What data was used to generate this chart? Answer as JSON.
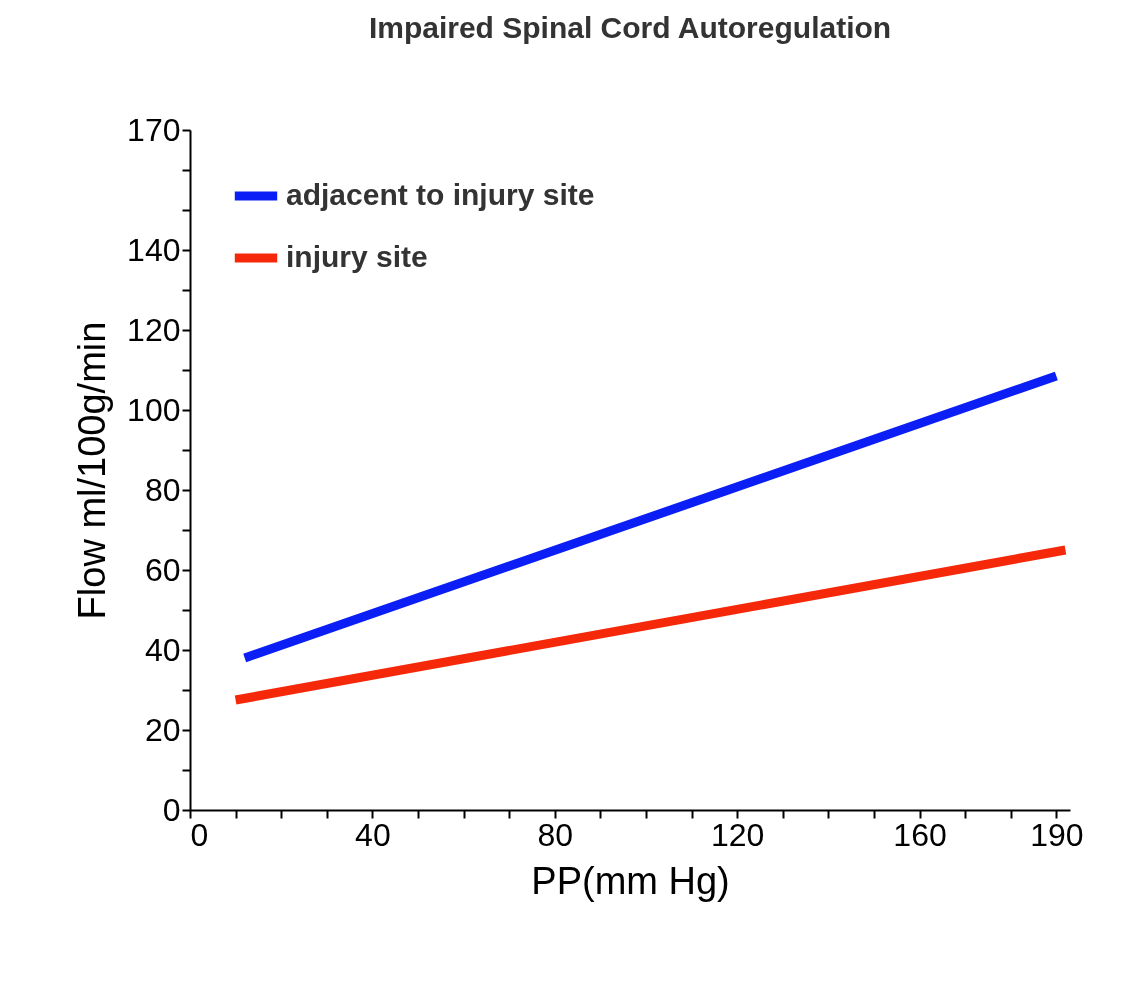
{
  "chart_data": {
    "type": "line",
    "title": "Impaired Spinal Cord Autoregulation",
    "xlabel": "PP(mm Hg)",
    "ylabel": "Flow ml/100g/min",
    "xlim": [
      0,
      193
    ],
    "ylim": [
      0,
      170
    ],
    "xticks": [
      0,
      {
        "value": 10,
        "label": null
      },
      {
        "value": 20,
        "label": null
      },
      {
        "value": 30,
        "label": null
      },
      40,
      {
        "value": 50,
        "label": null
      },
      {
        "value": 60,
        "label": null
      },
      {
        "value": 70,
        "label": null
      },
      80,
      {
        "value": 90,
        "label": null
      },
      {
        "value": 100,
        "label": null
      },
      {
        "value": 110,
        "label": null
      },
      120,
      {
        "value": 130,
        "label": null
      },
      {
        "value": 140,
        "label": null
      },
      {
        "value": 150,
        "label": null
      },
      160,
      {
        "value": 170,
        "label": null
      },
      {
        "value": 180,
        "label": null
      },
      190
    ],
    "yticks": [
      0,
      {
        "value": 10,
        "label": null
      },
      20,
      {
        "value": 30,
        "label": null
      },
      40,
      {
        "value": 50,
        "label": null
      },
      60,
      {
        "value": 70,
        "label": null
      },
      80,
      {
        "value": 90,
        "label": null
      },
      100,
      {
        "value": 110,
        "label": null
      },
      120,
      {
        "value": 130,
        "label": null
      },
      140,
      {
        "value": 150,
        "label": null
      },
      {
        "value": 160,
        "label": null
      },
      170
    ],
    "legend": "top left",
    "marker": "none",
    "line_style": "solid",
    "series": [
      {
        "name": "adjacent  to injury site",
        "color": "#0a1ef5",
        "x": [
          12,
          190
        ],
        "values": [
          38,
          108.5
        ]
      },
      {
        "name": "injury site",
        "color": "#f5280a",
        "x": [
          10,
          192
        ],
        "values": [
          27.5,
          65
        ]
      }
    ]
  }
}
